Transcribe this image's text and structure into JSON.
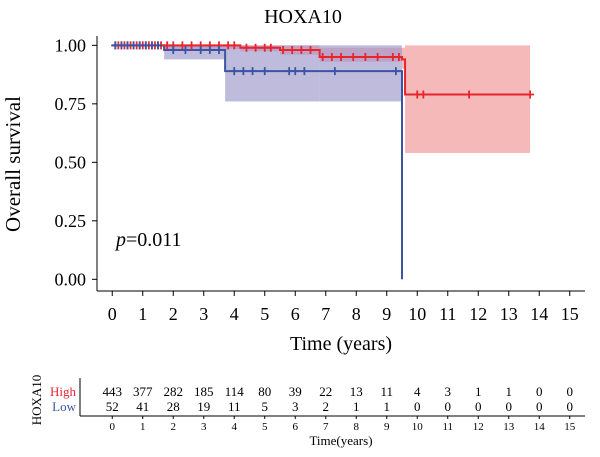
{
  "chart_data": {
    "type": "line",
    "title": "HOXA10",
    "xlabel": "Time (years)",
    "ylabel": "Overall survival",
    "annotation_p": "p",
    "annotation_val": "=0.011",
    "xlim": [
      -0.5,
      15.5
    ],
    "ylim": [
      -0.05,
      1.04
    ],
    "x_ticks": [
      "0",
      "1",
      "2",
      "3",
      "4",
      "5",
      "6",
      "7",
      "8",
      "9",
      "10",
      "11",
      "12",
      "13",
      "14",
      "15"
    ],
    "y_ticks": [
      "0.00",
      "0.25",
      "0.50",
      "0.75",
      "1.00"
    ],
    "series": [
      {
        "name": "High",
        "color": "#e8242c",
        "ci_color": "#f19494",
        "steps": [
          [
            0,
            1.0
          ],
          [
            4.2,
            0.99
          ],
          [
            5.5,
            0.98
          ],
          [
            6.8,
            0.95
          ],
          [
            9.5,
            0.94
          ],
          [
            9.6,
            0.79
          ],
          [
            13.7,
            0.79
          ]
        ],
        "ci": [
          [
            0,
            1.0,
            1.0
          ],
          [
            1.7,
            0.985,
            1.0
          ],
          [
            4.2,
            0.975,
            1.0
          ],
          [
            5.5,
            0.96,
            1.0
          ],
          [
            6.8,
            0.93,
            0.99
          ],
          [
            9.5,
            0.9,
            0.99
          ],
          [
            9.6,
            0.54,
            1.0
          ],
          [
            13.7,
            0.54,
            1.0
          ]
        ],
        "censor": [
          0.1,
          0.2,
          0.3,
          0.4,
          0.5,
          0.6,
          0.7,
          0.8,
          0.9,
          1.0,
          1.1,
          1.2,
          1.3,
          1.4,
          1.5,
          1.6,
          1.8,
          2.0,
          2.3,
          2.6,
          2.9,
          3.2,
          3.5,
          3.8,
          4.0,
          4.4,
          4.7,
          5.0,
          5.2,
          5.6,
          5.9,
          6.2,
          6.5,
          6.9,
          7.2,
          7.5,
          7.9,
          8.3,
          8.7,
          9.2,
          9.4,
          10.0,
          10.2,
          11.7,
          13.7
        ]
      },
      {
        "name": "Low",
        "color": "#3b55a4",
        "ci_color": "#9c96cb",
        "steps": [
          [
            0,
            1.0
          ],
          [
            1.7,
            0.98
          ],
          [
            3.7,
            0.89
          ],
          [
            6.8,
            0.89
          ],
          [
            9.5,
            0.0
          ]
        ],
        "ci": [
          [
            0,
            1.0,
            1.0
          ],
          [
            1.7,
            0.94,
            1.0
          ],
          [
            3.7,
            0.76,
            1.0
          ],
          [
            6.8,
            0.76,
            1.0
          ],
          [
            9.5,
            0.76,
            1.0
          ]
        ],
        "censor": [
          0.1,
          0.3,
          0.5,
          0.7,
          0.9,
          1.1,
          1.3,
          1.5,
          2.0,
          2.4,
          2.9,
          3.2,
          3.5,
          4.0,
          4.3,
          4.6,
          5.0,
          5.8,
          6.0,
          6.3,
          7.3,
          9.3
        ]
      }
    ]
  },
  "risk_table": {
    "group_label": "HOXA10",
    "xlabel": "Time(years)",
    "x_ticks": [
      "0",
      "1",
      "2",
      "3",
      "4",
      "5",
      "6",
      "7",
      "8",
      "9",
      "10",
      "11",
      "12",
      "13",
      "14",
      "15"
    ],
    "rows": [
      {
        "name": "High",
        "color": "#e8242c",
        "values": [
          "443",
          "377",
          "282",
          "185",
          "114",
          "80",
          "39",
          "22",
          "13",
          "11",
          "4",
          "3",
          "1",
          "1",
          "0",
          "0"
        ]
      },
      {
        "name": "Low",
        "color": "#3b55a4",
        "values": [
          "52",
          "41",
          "28",
          "19",
          "11",
          "5",
          "3",
          "2",
          "1",
          "1",
          "0",
          "0",
          "0",
          "0",
          "0",
          "0"
        ]
      }
    ]
  }
}
